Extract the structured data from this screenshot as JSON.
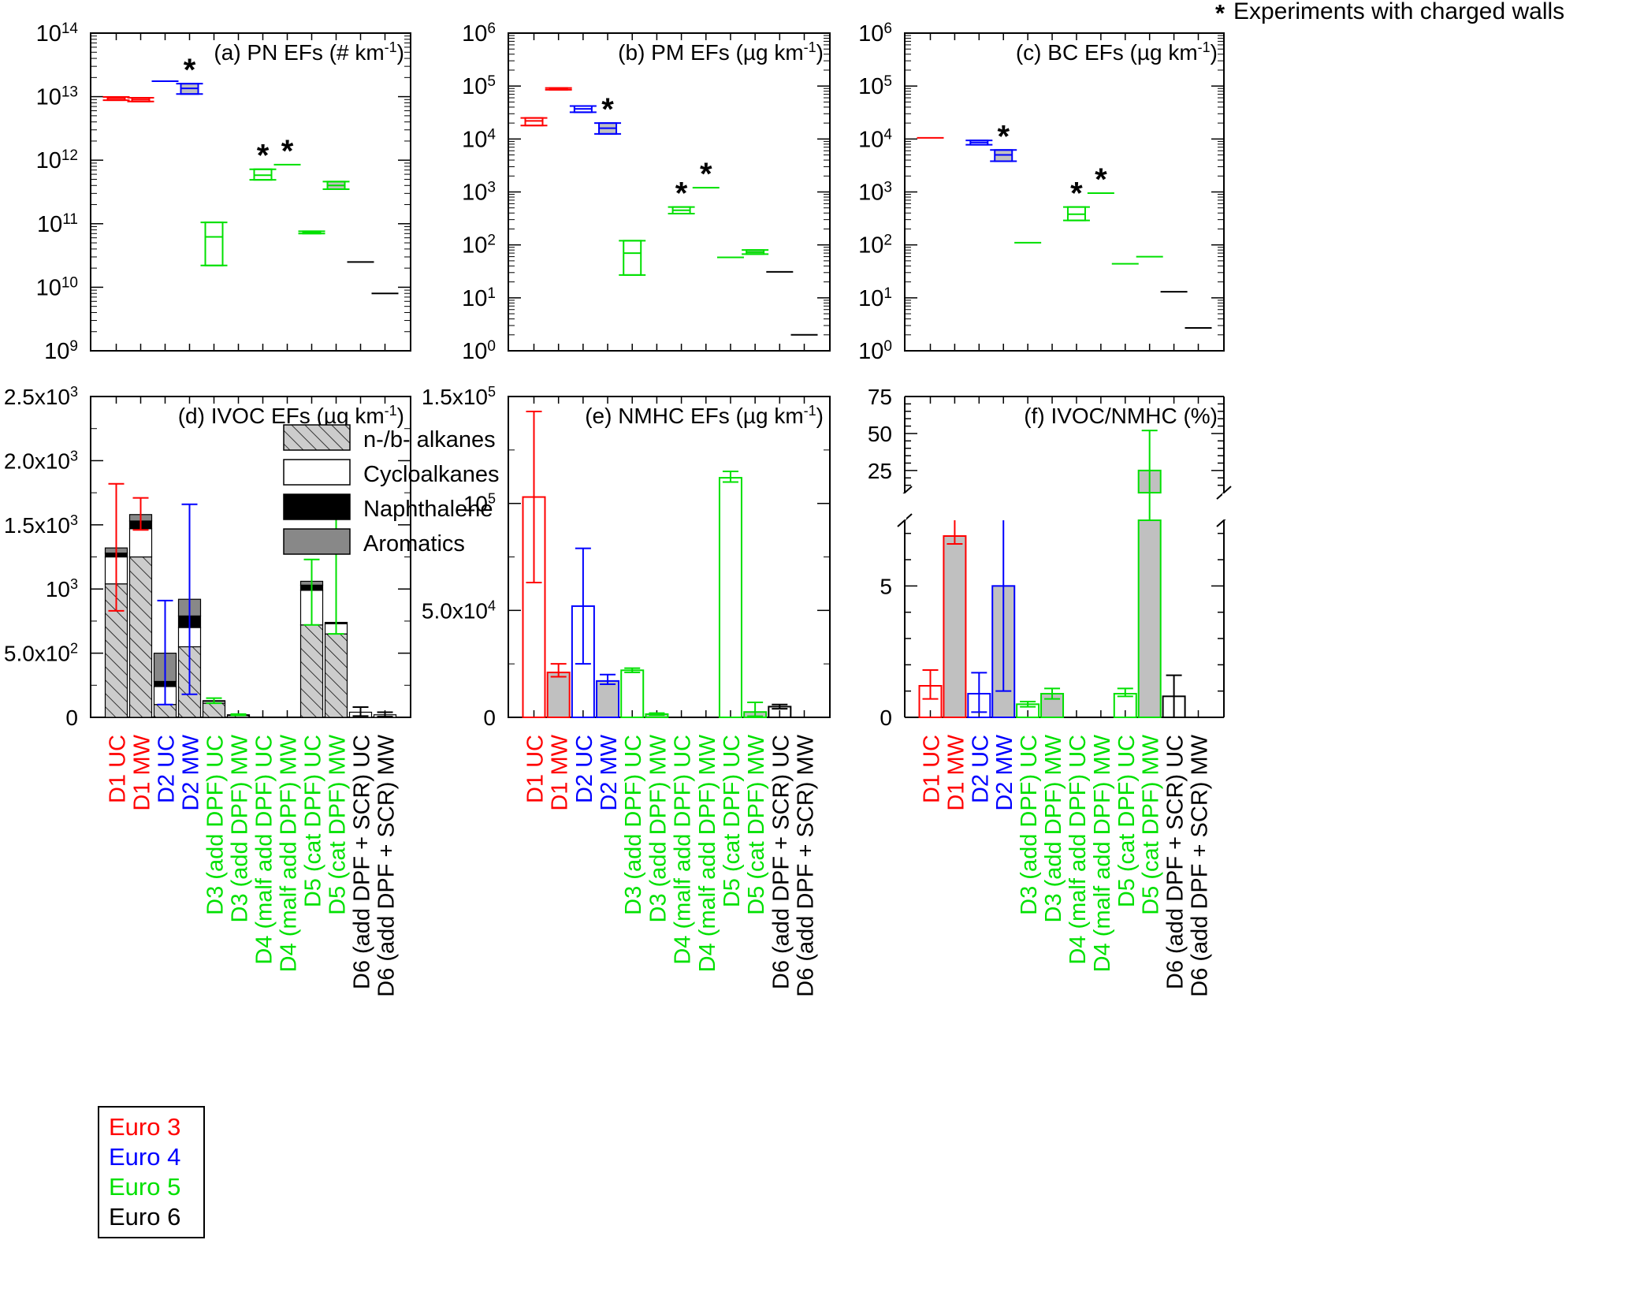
{
  "figure_note": "* Experiments with charged walls",
  "colors": {
    "Euro 3": "#ff0000",
    "Euro 4": "#0000ff",
    "Euro 5": "#00e000",
    "Euro 6": "#000000"
  },
  "euro_legend": [
    {
      "label": "Euro 3",
      "color": "#ff0000"
    },
    {
      "label": "Euro 4",
      "color": "#0000ff"
    },
    {
      "label": "Euro 5",
      "color": "#00e000"
    },
    {
      "label": "Euro 6",
      "color": "#000000"
    }
  ],
  "categories": [
    "D1 UC",
    "D1 MW",
    "D2 UC",
    "D2 MW",
    "D3 (add DPF) UC",
    "D3 (add DPF) MW",
    "D4 (malf add DPF) UC",
    "D4 (malf add DPF) MW",
    "D5 (cat DPF) UC",
    "D5 (cat DPF) MW",
    "D6 (add DPF + SCR) UC",
    "D6 (add DPF + SCR) MW"
  ],
  "category_euro": [
    "Euro 3",
    "Euro 3",
    "Euro 4",
    "Euro 4",
    "Euro 5",
    "Euro 5",
    "Euro 5",
    "Euro 5",
    "Euro 5",
    "Euro 5",
    "Euro 6",
    "Euro 6"
  ],
  "chart_data": [
    {
      "id": "a",
      "type": "box",
      "scale": "log",
      "title": "(a) PN EFs (# km",
      "title_unit_sup": "-1",
      "title_close": ")",
      "ylim_exp": [
        9,
        14
      ],
      "ytick_exps": [
        9,
        10,
        11,
        12,
        13,
        14
      ],
      "ytick_base": "10",
      "boxes": [
        {
          "cat": "D1 UC",
          "low": 8800000000000.0,
          "mid": 9400000000000.0,
          "high": 9900000000000.0,
          "fill": false,
          "star": false
        },
        {
          "cat": "D1 MW",
          "low": 8400000000000.0,
          "mid": 9000000000000.0,
          "high": 9600000000000.0,
          "fill": false,
          "star": false
        },
        {
          "cat": "D2 UC",
          "low": 17200000000000.0,
          "mid": 17500000000000.0,
          "high": 17800000000000.0,
          "fill": false,
          "star": false
        },
        {
          "cat": "D2 MW",
          "low": 11000000000000.0,
          "mid": 13500000000000.0,
          "high": 16000000000000.0,
          "fill": true,
          "star": true
        },
        {
          "cat": "D3 (add DPF) UC",
          "low": 22000000000.0,
          "mid": 62000000000.0,
          "high": 105000000000.0,
          "fill": false,
          "star": false
        },
        {
          "cat": "D4 (malf add DPF) UC",
          "low": 490000000000.0,
          "mid": 580000000000.0,
          "high": 720000000000.0,
          "fill": false,
          "star": true
        },
        {
          "cat": "D4 (malf add DPF) MW",
          "low": 850000000000.0,
          "mid": 850000000000.0,
          "high": 850000000000.0,
          "fill": false,
          "star": true
        },
        {
          "cat": "D5 (cat DPF) UC",
          "low": 70000000000.0,
          "mid": 73000000000.0,
          "high": 76000000000.0,
          "fill": false,
          "star": false
        },
        {
          "cat": "D5 (cat DPF) MW",
          "low": 350000000000.0,
          "mid": 400000000000.0,
          "high": 460000000000.0,
          "fill": true,
          "star": false
        },
        {
          "cat": "D6 (add DPF + SCR) UC",
          "low": 25000000000.0,
          "mid": 25000000000.0,
          "high": 25000000000.0,
          "fill": false,
          "star": false
        },
        {
          "cat": "D6 (add DPF + SCR) MW",
          "low": 8000000000.0,
          "mid": 8000000000.0,
          "high": 8000000000.0,
          "fill": false,
          "star": false
        }
      ]
    },
    {
      "id": "b",
      "type": "box",
      "scale": "log",
      "title": "(b) PM EFs (µg km",
      "title_unit_sup": "-1",
      "title_close": ")",
      "ylim_exp": [
        0,
        6
      ],
      "ytick_exps": [
        0,
        1,
        2,
        3,
        4,
        5,
        6
      ],
      "ytick_base": "10",
      "boxes": [
        {
          "cat": "D1 UC",
          "low": 18000.0,
          "mid": 22000.0,
          "high": 25000.0,
          "fill": false,
          "star": false
        },
        {
          "cat": "D1 MW",
          "low": 85000.0,
          "mid": 88000.0,
          "high": 92000.0,
          "fill": false,
          "star": false
        },
        {
          "cat": "D2 UC",
          "low": 32000.0,
          "mid": 37000.0,
          "high": 42000.0,
          "fill": false,
          "star": false
        },
        {
          "cat": "D2 MW",
          "low": 12500.0,
          "mid": 16000.0,
          "high": 20000.0,
          "fill": true,
          "star": true
        },
        {
          "cat": "D3 (add DPF) UC",
          "low": 27,
          "mid": 70,
          "high": 120,
          "fill": false,
          "star": false
        },
        {
          "cat": "D4 (malf add DPF) UC",
          "low": 390,
          "mid": 450,
          "high": 520,
          "fill": false,
          "star": true
        },
        {
          "cat": "D4 (malf add DPF) MW",
          "low": 1200,
          "mid": 1200,
          "high": 1200,
          "fill": false,
          "star": true
        },
        {
          "cat": "D5 (cat DPF) UC",
          "low": 58,
          "mid": 58,
          "high": 58,
          "fill": false,
          "star": false
        },
        {
          "cat": "D5 (cat DPF) MW",
          "low": 67,
          "mid": 73,
          "high": 80,
          "fill": true,
          "star": false
        },
        {
          "cat": "D6 (add DPF + SCR) UC",
          "low": 31,
          "mid": 31,
          "high": 31,
          "fill": false,
          "star": false
        },
        {
          "cat": "D6 (add DPF + SCR) MW",
          "low": 2.0,
          "mid": 2.0,
          "high": 2.0,
          "fill": false,
          "star": false
        }
      ]
    },
    {
      "id": "c",
      "type": "box",
      "scale": "log",
      "title": "(c) BC EFs (µg km",
      "title_unit_sup": "-1",
      "title_close": ")",
      "ylim_exp": [
        0,
        6
      ],
      "ytick_exps": [
        0,
        1,
        2,
        3,
        4,
        5,
        6
      ],
      "ytick_base": "10",
      "boxes": [
        {
          "cat": "D1 UC",
          "low": 10500.0,
          "mid": 10500.0,
          "high": 10500.0,
          "fill": false,
          "star": false
        },
        {
          "cat": "D2 UC",
          "low": 7800.0,
          "mid": 8600.0,
          "high": 9400.0,
          "fill": false,
          "star": false
        },
        {
          "cat": "D2 MW",
          "low": 3800.0,
          "mid": 5000.0,
          "high": 6200.0,
          "fill": true,
          "star": true
        },
        {
          "cat": "D3 (add DPF) UC",
          "low": 110,
          "mid": 110,
          "high": 110,
          "fill": false,
          "star": false
        },
        {
          "cat": "D4 (malf add DPF) UC",
          "low": 290,
          "mid": 380,
          "high": 520,
          "fill": false,
          "star": true
        },
        {
          "cat": "D4 (malf add DPF) MW",
          "low": 950,
          "mid": 950,
          "high": 950,
          "fill": false,
          "star": true
        },
        {
          "cat": "D5 (cat DPF) UC",
          "low": 44,
          "mid": 44,
          "high": 44,
          "fill": false,
          "star": false
        },
        {
          "cat": "D5 (cat DPF) MW",
          "low": 60,
          "mid": 60,
          "high": 60,
          "fill": false,
          "star": false
        },
        {
          "cat": "D6 (add DPF + SCR) UC",
          "low": 13,
          "mid": 13,
          "high": 13,
          "fill": false,
          "star": false
        },
        {
          "cat": "D6 (add DPF + SCR) MW",
          "low": 2.7,
          "mid": 2.7,
          "high": 2.7,
          "fill": false,
          "star": false
        }
      ]
    },
    {
      "id": "d",
      "type": "stacked_bar",
      "scale": "linear",
      "title": "(d) IVOC EFs (µg km",
      "title_unit_sup": "-1",
      "title_close": ")",
      "ylim": [
        0,
        2500
      ],
      "yticks": [
        {
          "v": 0,
          "m": "0",
          "e": ""
        },
        {
          "v": 500,
          "m": "5.0x10",
          "e": "2"
        },
        {
          "v": 1000,
          "m": "10",
          "e": "3"
        },
        {
          "v": 1500,
          "m": "1.5x10",
          "e": "3"
        },
        {
          "v": 2000,
          "m": "2.0x10",
          "e": "3"
        },
        {
          "v": 2500,
          "m": "2.5x10",
          "e": "3"
        }
      ],
      "component_legend": [
        {
          "label": "n-/b- alkanes",
          "style": "hatch"
        },
        {
          "label": "Cycloalkanes",
          "style": "white"
        },
        {
          "label": "Naphthalene",
          "style": "black"
        },
        {
          "label": "Aromatics",
          "style": "gray"
        }
      ],
      "bars": [
        {
          "cat": "D1 UC",
          "alkanes": 1040,
          "cycloalkanes": 210,
          "naphthalene": 30,
          "aromatics": 40,
          "err_low": 830,
          "err_high": 1820
        },
        {
          "cat": "D1 MW",
          "alkanes": 1250,
          "cycloalkanes": 220,
          "naphthalene": 60,
          "aromatics": 50,
          "err_low": 1460,
          "err_high": 1710
        },
        {
          "cat": "D2 UC",
          "alkanes": 100,
          "cycloalkanes": 140,
          "naphthalene": 40,
          "aromatics": 220,
          "err_low": 100,
          "err_high": 910
        },
        {
          "cat": "D2 MW",
          "alkanes": 550,
          "cycloalkanes": 150,
          "naphthalene": 90,
          "aromatics": 130,
          "err_low": 180,
          "err_high": 1660
        },
        {
          "cat": "D3 (add DPF) UC",
          "alkanes": 110,
          "cycloalkanes": 15,
          "naphthalene": 0,
          "aromatics": 5,
          "err_low": 110,
          "err_high": 150
        },
        {
          "cat": "D3 (add DPF) MW",
          "alkanes": 15,
          "cycloalkanes": 5,
          "naphthalene": 0,
          "aromatics": 0,
          "err_low": 15,
          "err_high": 25
        },
        {
          "cat": "D5 (cat DPF) UC",
          "alkanes": 720,
          "cycloalkanes": 270,
          "naphthalene": 40,
          "aromatics": 30,
          "err_low": 720,
          "err_high": 1230
        },
        {
          "cat": "D5 (cat DPF) MW",
          "alkanes": 650,
          "cycloalkanes": 80,
          "naphthalene": 10,
          "aromatics": 0,
          "err_low": 650,
          "err_high": 1560
        },
        {
          "cat": "D6 (add DPF + SCR) UC",
          "alkanes": 0,
          "cycloalkanes": 40,
          "naphthalene": 0,
          "aromatics": 0,
          "err_low": 10,
          "err_high": 80
        },
        {
          "cat": "D6 (add DPF + SCR) MW",
          "alkanes": 0,
          "cycloalkanes": 20,
          "naphthalene": 0,
          "aromatics": 0,
          "err_low": 5,
          "err_high": 40
        }
      ]
    },
    {
      "id": "e",
      "type": "bar",
      "scale": "linear",
      "title": "(e) NMHC EFs (µg km",
      "title_unit_sup": "-1",
      "title_close": ")",
      "ylim": [
        0,
        150000
      ],
      "yticks": [
        {
          "v": 0,
          "m": "0",
          "e": ""
        },
        {
          "v": 50000,
          "m": "5.0x10",
          "e": "4"
        },
        {
          "v": 100000,
          "m": "10",
          "e": "5"
        },
        {
          "v": 150000,
          "m": "1.5x10",
          "e": "5"
        }
      ],
      "bars": [
        {
          "cat": "D1 UC",
          "value": 103000,
          "err_low": 63000,
          "err_high": 143000,
          "fill": false
        },
        {
          "cat": "D1 MW",
          "value": 21000,
          "err_low": 19000,
          "err_high": 25000,
          "fill": true
        },
        {
          "cat": "D2 UC",
          "value": 52000,
          "err_low": 25000,
          "err_high": 79000,
          "fill": false
        },
        {
          "cat": "D2 MW",
          "value": 17000,
          "err_low": 15500,
          "err_high": 20000,
          "fill": true
        },
        {
          "cat": "D3 (add DPF) UC",
          "value": 22000,
          "err_low": 21000,
          "err_high": 23000,
          "fill": false
        },
        {
          "cat": "D3 (add DPF) MW",
          "value": 1500,
          "err_low": 1000,
          "err_high": 2000,
          "fill": true
        },
        {
          "cat": "D5 (cat DPF) UC",
          "value": 112000,
          "err_low": 110000,
          "err_high": 115000,
          "fill": false
        },
        {
          "cat": "D5 (cat DPF) MW",
          "value": 2500,
          "err_low": 500,
          "err_high": 7000,
          "fill": true
        },
        {
          "cat": "D6 (add DPF + SCR) UC",
          "value": 5000,
          "err_low": 4000,
          "err_high": 6000,
          "fill": false
        }
      ]
    },
    {
      "id": "f",
      "type": "bar",
      "scale": "broken",
      "title": "(f) IVOC/NMHC (%)",
      "ylim_lower": [
        0,
        7.5
      ],
      "ylim_upper": [
        10,
        75
      ],
      "yticks_lower": [
        0,
        5
      ],
      "yticks_upper": [
        25,
        50,
        75
      ],
      "bars": [
        {
          "cat": "D1 UC",
          "value": 1.2,
          "err_low": 0.7,
          "err_high": 1.8,
          "fill": false
        },
        {
          "cat": "D1 MW",
          "value": 6.9,
          "err_low": 6.6,
          "err_high": 7.7,
          "fill": true
        },
        {
          "cat": "D2 UC",
          "value": 0.9,
          "err_low": 0.2,
          "err_high": 1.7,
          "fill": false
        },
        {
          "cat": "D2 MW",
          "value": 5.0,
          "err_low": 1.0,
          "err_high": 7.6,
          "fill": true
        },
        {
          "cat": "D3 (add DPF) UC",
          "value": 0.5,
          "err_low": 0.4,
          "err_high": 0.6,
          "fill": false
        },
        {
          "cat": "D3 (add DPF) MW",
          "value": 0.9,
          "err_low": 0.7,
          "err_high": 1.1,
          "fill": true
        },
        {
          "cat": "D5 (cat DPF) UC",
          "value": 0.9,
          "err_low": 0.8,
          "err_high": 1.1,
          "fill": false
        },
        {
          "cat": "D5 (cat DPF) MW",
          "value": 25,
          "err_low": 8,
          "err_high": 52,
          "fill": true
        },
        {
          "cat": "D6 (add DPF + SCR) UC",
          "value": 0.8,
          "err_low": 0,
          "err_high": 1.6,
          "fill": false
        }
      ]
    }
  ]
}
